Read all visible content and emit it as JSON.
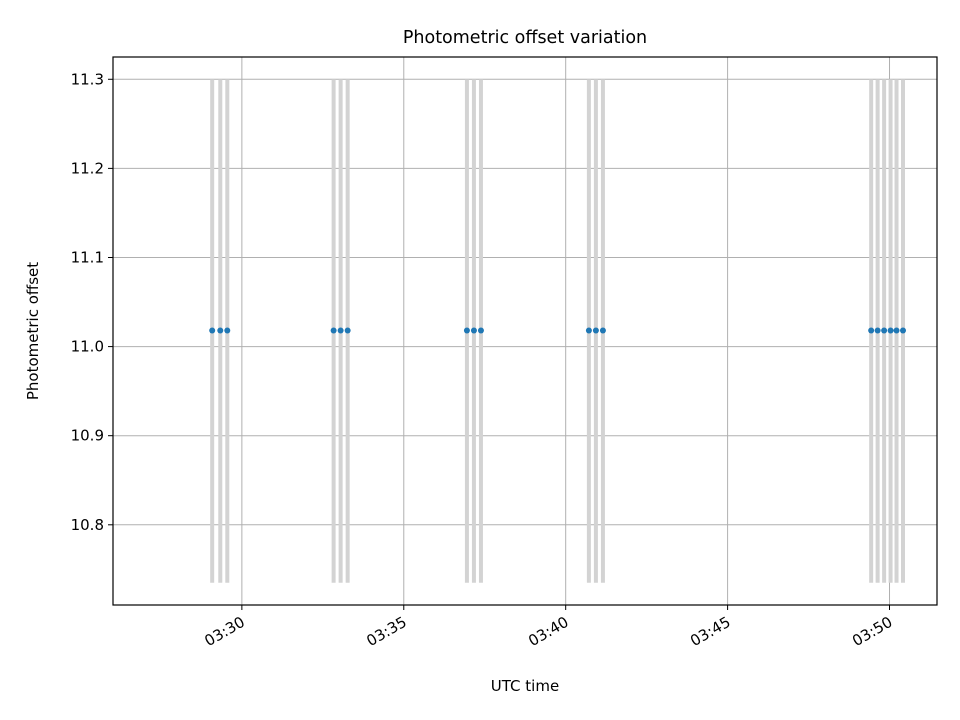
{
  "chart_data": {
    "type": "scatter",
    "title": "Photometric offset variation",
    "xlabel": "UTC time",
    "ylabel": "Photometric offset",
    "x_axis_type": "time",
    "xlim": [
      "03:27:07",
      "03:50:25"
    ],
    "ylim": [
      10.71,
      11.325
    ],
    "grid": true,
    "x_ticks": [
      "03:30",
      "03:35",
      "03:40",
      "03:45",
      "03:50"
    ],
    "y_ticks": [
      "10.8",
      "10.9",
      "11.0",
      "11.1",
      "11.2",
      "11.3"
    ],
    "series": [
      {
        "marker_color": "#1f77b4",
        "band_color": "#d3d3d3",
        "band_range": [
          10.735,
          11.3
        ],
        "points": [
          {
            "x": "03:29:05",
            "y": 11.018
          },
          {
            "x": "03:29:20",
            "y": 11.018
          },
          {
            "x": "03:29:33",
            "y": 11.018
          },
          {
            "x": "03:32:50",
            "y": 11.018
          },
          {
            "x": "03:33:03",
            "y": 11.018
          },
          {
            "x": "03:33:16",
            "y": 11.018
          },
          {
            "x": "03:36:57",
            "y": 11.018
          },
          {
            "x": "03:37:10",
            "y": 11.018
          },
          {
            "x": "03:37:23",
            "y": 11.018
          },
          {
            "x": "03:40:43",
            "y": 11.018
          },
          {
            "x": "03:40:56",
            "y": 11.018
          },
          {
            "x": "03:41:09",
            "y": 11.018
          },
          {
            "x": "03:49:26",
            "y": 11.018
          },
          {
            "x": "03:49:38",
            "y": 11.018
          },
          {
            "x": "03:49:50",
            "y": 11.018
          },
          {
            "x": "03:50:02",
            "y": 11.018
          },
          {
            "x": "03:50:13",
            "y": 11.018
          },
          {
            "x": "03:50:25",
            "y": 11.018
          }
        ]
      }
    ]
  }
}
